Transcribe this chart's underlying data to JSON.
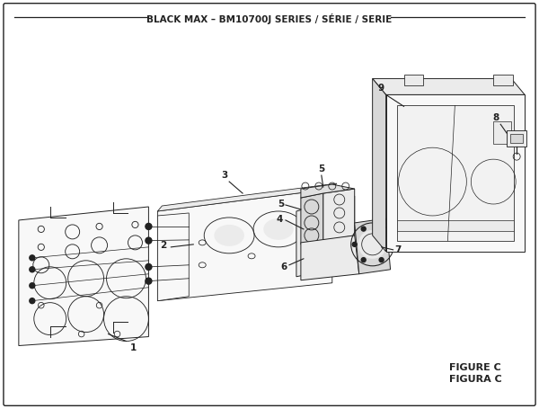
{
  "title": "BLACK MAX – BM10700J SERIES / SÉRIE / SERIE",
  "figure_label": "FIGURE C",
  "figura_label": "FIGURA C",
  "bg_color": "#ffffff",
  "line_color": "#222222",
  "border_color": "#222222",
  "title_fontsize": 7.5,
  "fig_width": 6.0,
  "fig_height": 4.55,
  "dpi": 100
}
